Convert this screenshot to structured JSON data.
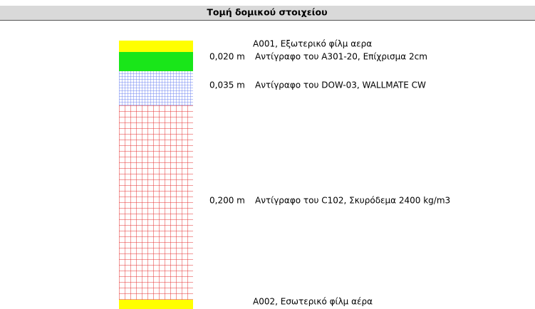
{
  "header": {
    "title": "Τομή δομικού στοιχείου"
  },
  "layers": [
    {
      "name": "A001, Εξωτερικό φίλμ αερα"
    },
    {
      "thickness": "0,020 m",
      "name": "Αντίγραφο του A301-20, Επίχρισμα 2cm"
    },
    {
      "thickness": "0,035 m",
      "name": "Αντίγραφο του DOW-03, WALLMATE CW"
    },
    {
      "thickness": "0,200 m",
      "name": "Αντίγραφο του C102, Σκυρόδεμα 2400 kg/m3"
    },
    {
      "name": "A002, Εσωτερικό φίλμ αέρα"
    }
  ]
}
